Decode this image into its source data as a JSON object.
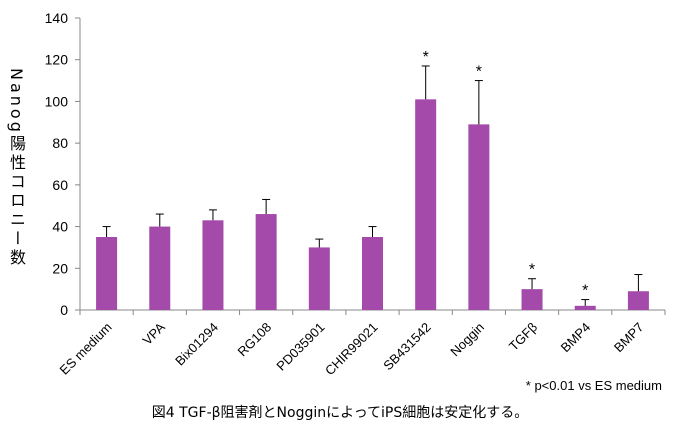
{
  "chart_data": {
    "type": "bar",
    "ylabel": "Nanog陽性コロニー数",
    "ylim": [
      0,
      140
    ],
    "yticks": [
      0,
      20,
      40,
      60,
      80,
      100,
      120,
      140
    ],
    "categories": [
      "ES medium",
      "VPA",
      "Bix01294",
      "RG108",
      "PD035901",
      "CHIR99021",
      "SB431542",
      "Noggin",
      "TGFβ",
      "BMP4",
      "BMP7"
    ],
    "values": [
      35,
      40,
      43,
      46,
      30,
      35,
      101,
      89,
      10,
      2,
      9
    ],
    "error_upper": [
      40,
      46,
      48,
      53,
      34,
      40,
      117,
      110,
      15,
      5,
      17
    ],
    "significance": [
      "",
      "",
      "",
      "",
      "",
      "",
      "*",
      "*",
      "*",
      "*",
      ""
    ],
    "bar_color": "#a34aaa",
    "grid": false,
    "footnote": "* p<0.01 vs ES medium",
    "caption": "図4 TGF-β阻害剤とNogginによってiPS細胞は安定化する。"
  }
}
